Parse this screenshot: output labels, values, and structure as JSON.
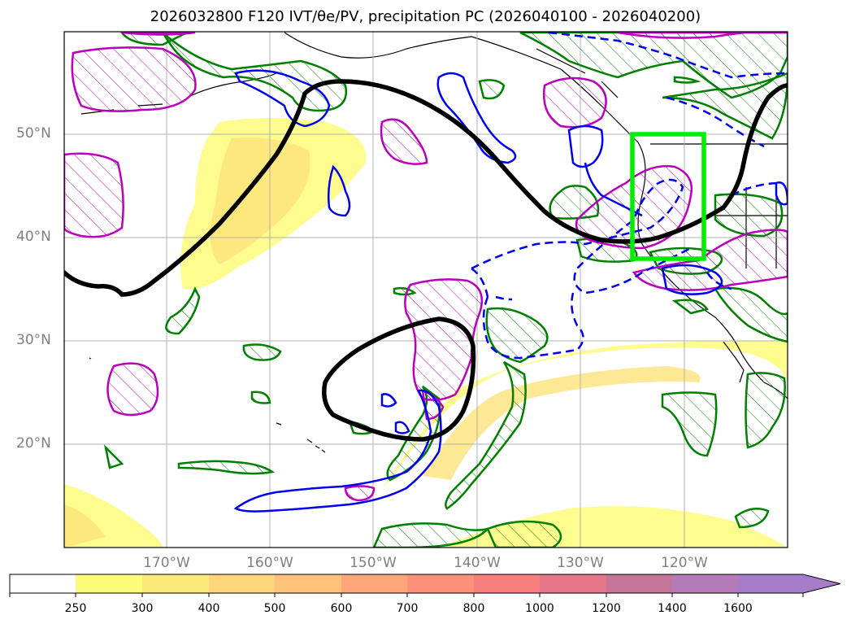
{
  "title": "2026032800 F120 IVT/θe/PV, precipitation PC (2026040100 - 2026040200)",
  "map": {
    "lat_ticks": [
      "50°N",
      "40°N",
      "30°N",
      "20°N"
    ],
    "lon_ticks": [
      "170°W",
      "160°W",
      "150°W",
      "140°W",
      "130°W",
      "120°W"
    ],
    "colors": {
      "ivt_fill": "#fefc7a",
      "jet_contour": "#000000",
      "pv_positive": "#0000ee",
      "pv_hatch": "#008000",
      "theta_hatch": "#bb00bb",
      "box": "#00ee00"
    }
  },
  "colorbar": {
    "levels": [
      "250",
      "300",
      "400",
      "500",
      "600",
      "700",
      "800",
      "1000",
      "1200",
      "1400",
      "1600"
    ],
    "colors": [
      "#ffffff",
      "#fdfc7a",
      "#fde97a",
      "#fed57a",
      "#fec27a",
      "#fea77a",
      "#fd907a",
      "#f97e7e",
      "#e57788",
      "#c57597",
      "#b37bb7",
      "#a77cc9"
    ]
  }
}
